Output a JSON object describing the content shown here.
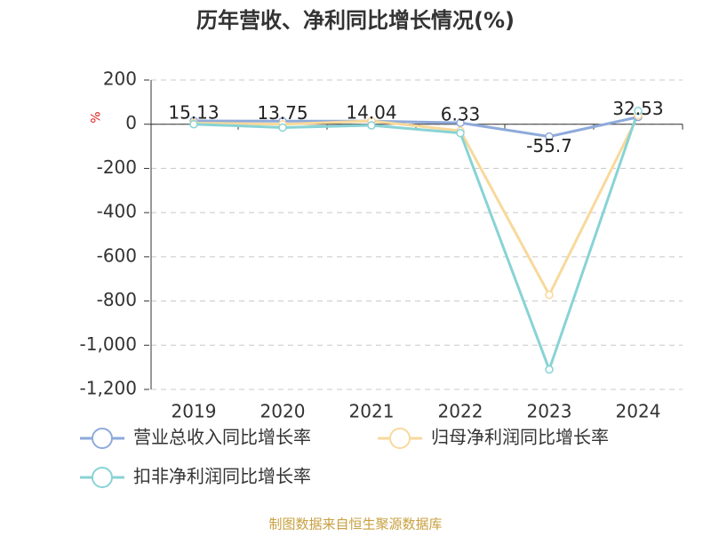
{
  "chart_data": {
    "type": "line",
    "title": "历年营收、净利同比增长情况(%)",
    "y_unit": "%",
    "categories": [
      "2019",
      "2020",
      "2021",
      "2022",
      "2023",
      "2024"
    ],
    "series": [
      {
        "name": "营业总收入同比增长率",
        "color": "#8eaadb",
        "values": [
          15.13,
          13.75,
          14.04,
          6.33,
          -55.7,
          32.53
        ],
        "show_labels": true
      },
      {
        "name": "归母净利润同比增长率",
        "color": "#f8d99b",
        "values": [
          5,
          0,
          15,
          -30,
          -772,
          40
        ],
        "show_labels": false
      },
      {
        "name": "扣非净利润同比增长率",
        "color": "#88d3d5",
        "values": [
          0,
          -15,
          -5,
          -40,
          -1110,
          60
        ],
        "show_labels": false
      }
    ],
    "ylim": [
      -1200,
      200
    ],
    "yticks": [
      {
        "value": -1200,
        "label": "-1,200"
      },
      {
        "value": -1000,
        "label": "-1,000"
      },
      -800,
      -600,
      -400,
      -200,
      0,
      200
    ],
    "grid": true,
    "source": "制图数据来自恒生聚源数据库"
  }
}
